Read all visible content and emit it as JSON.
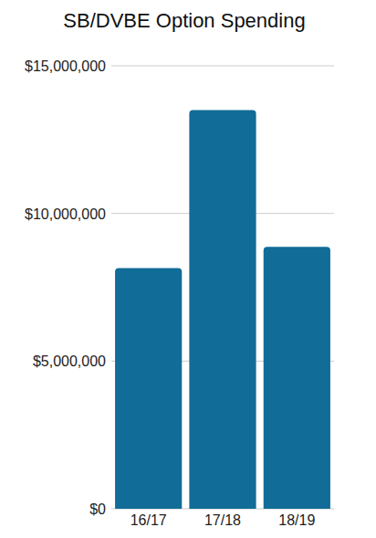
{
  "chart_data": {
    "type": "bar",
    "title": "SB/DVBE Option Spending",
    "categories": [
      "16/17",
      "17/18",
      "18/19"
    ],
    "values": [
      8150000,
      13500000,
      8870000
    ],
    "color": "#116c97",
    "ylim": [
      0,
      15000000
    ],
    "yticks": [
      {
        "value": 0,
        "label": "$0"
      },
      {
        "value": 5000000,
        "label": "$5,000,000"
      },
      {
        "value": 10000000,
        "label": "$10,000,000"
      },
      {
        "value": 15000000,
        "label": "$15,000,000"
      }
    ],
    "grid": true
  }
}
